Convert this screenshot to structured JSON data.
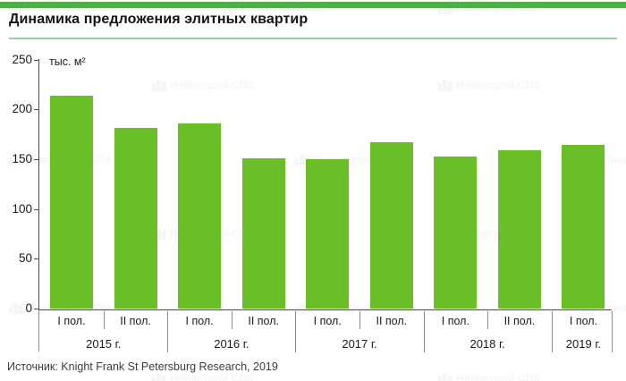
{
  "header": {
    "title": "Динамика предложения элитных квартир"
  },
  "chart_data": {
    "type": "bar",
    "title": "Динамика предложения элитных квартир",
    "ylabel": "тыс. м²",
    "ylim": [
      0,
      250
    ],
    "yticks": [
      0,
      50,
      100,
      150,
      200,
      250
    ],
    "grid": false,
    "legend": false,
    "categories": [
      "I пол.",
      "II пол.",
      "I пол.",
      "II пол.",
      "I пол.",
      "II пол.",
      "I пол.",
      "II пол.",
      "I пол."
    ],
    "groups": [
      {
        "label": "2015 г.",
        "span": 2
      },
      {
        "label": "2016 г.",
        "span": 2
      },
      {
        "label": "2017 г.",
        "span": 2
      },
      {
        "label": "2018 г.",
        "span": 2
      },
      {
        "label": "2019 г.",
        "span": 1
      }
    ],
    "values": [
      214,
      181,
      186,
      151,
      150,
      167,
      153,
      159,
      164
    ],
    "bar_color": "#6abe28"
  },
  "source": "Источник: Knight Frank St Petersburg Research, 2019",
  "watermark": {
    "text": "Новострой-СПб"
  },
  "colors": {
    "top_strip": "#4fb04a",
    "title_underline": "#9ccf99",
    "bar": "#6abe28",
    "axis": "#4d4d4d",
    "separator": "#8d8d8d"
  }
}
